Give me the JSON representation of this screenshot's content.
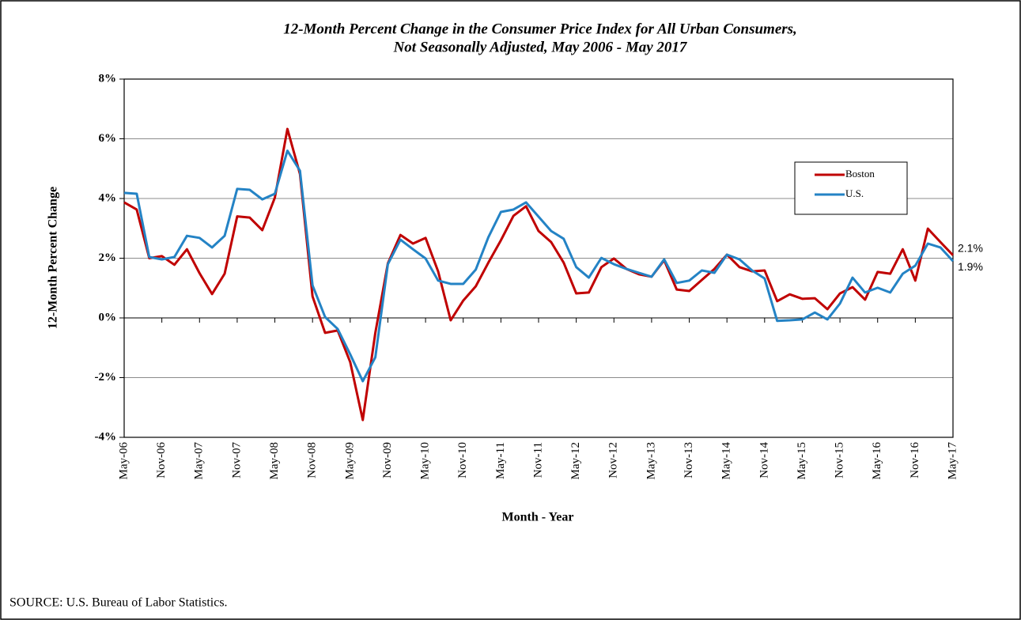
{
  "chart_data": {
    "type": "line",
    "title": [
      "12-Month Percent Change in the Consumer Price Index for All Urban Consumers,",
      "Not Seasonally Adjusted, May 2006 - May 2017"
    ],
    "ylabel": "12-Month Percent Change",
    "xlabel": "Month - Year",
    "source": "SOURCE:  U.S. Bureau of Labor Statistics.",
    "categories": [
      "May-06",
      null,
      null,
      "Nov-06",
      null,
      null,
      "May-07",
      null,
      null,
      "Nov-07",
      null,
      null,
      "May-08",
      null,
      null,
      "Nov-08",
      null,
      null,
      "May-09",
      null,
      null,
      "Nov-09",
      null,
      null,
      "May-10",
      null,
      null,
      "Nov-10",
      null,
      null,
      "May-11",
      null,
      null,
      "Nov-11",
      null,
      null,
      "May-12",
      null,
      null,
      "Nov-12",
      null,
      null,
      "May-13",
      null,
      null,
      "Nov-13",
      null,
      null,
      "May-14",
      null,
      null,
      "Nov-14",
      null,
      null,
      "May-15",
      null,
      null,
      "Nov-15",
      null,
      null,
      "May-16",
      null,
      null,
      "Nov-16",
      null,
      null,
      "May-17"
    ],
    "series": [
      {
        "name": "Boston",
        "color": "#c00000",
        "values": [
          3.87,
          3.63,
          2.0,
          2.07,
          1.78,
          2.3,
          1.5,
          0.8,
          1.48,
          3.4,
          3.36,
          2.94,
          4.03,
          6.33,
          4.82,
          0.72,
          -0.5,
          -0.42,
          -1.48,
          -3.42,
          -0.5,
          1.83,
          2.78,
          2.49,
          2.68,
          1.56,
          -0.08,
          0.58,
          1.06,
          1.85,
          2.6,
          3.42,
          3.74,
          2.91,
          2.54,
          1.85,
          0.82,
          0.85,
          1.7,
          1.99,
          1.64,
          1.46,
          1.38,
          1.93,
          0.95,
          0.9,
          1.27,
          1.64,
          2.12,
          1.7,
          1.56,
          1.59,
          0.56,
          0.79,
          0.64,
          0.66,
          0.29,
          0.82,
          1.03,
          0.61,
          1.54,
          1.48,
          2.3,
          1.25,
          2.99,
          2.54,
          2.1
        ],
        "value_labels": [
          null,
          null,
          null,
          null,
          null,
          null,
          null,
          null,
          null,
          null,
          null,
          null,
          null,
          null,
          null,
          null,
          null,
          null,
          null,
          null,
          null,
          null,
          null,
          null,
          null,
          null,
          null,
          null,
          null,
          null,
          null,
          null,
          null,
          null,
          null,
          null,
          null,
          null,
          null,
          null,
          null,
          null,
          null,
          null,
          null,
          null,
          null,
          null,
          null,
          null,
          null,
          null,
          null,
          null,
          null,
          null,
          null,
          null,
          null,
          null,
          null,
          null,
          null,
          null,
          null,
          null,
          "2.1%"
        ]
      },
      {
        "name": "U.S.",
        "color": "#2483c5",
        "values": [
          4.19,
          4.16,
          2.04,
          1.96,
          2.04,
          2.75,
          2.68,
          2.36,
          2.75,
          4.32,
          4.29,
          3.97,
          4.16,
          5.6,
          4.93,
          1.09,
          0.03,
          -0.37,
          -1.22,
          -2.12,
          -1.32,
          1.8,
          2.62,
          2.3,
          1.99,
          1.25,
          1.14,
          1.14,
          1.62,
          2.7,
          3.55,
          3.63,
          3.87,
          3.39,
          2.91,
          2.65,
          1.7,
          1.35,
          2.01,
          1.8,
          1.64,
          1.51,
          1.38,
          1.96,
          1.17,
          1.25,
          1.59,
          1.51,
          2.12,
          1.96,
          1.59,
          1.32,
          -0.1,
          -0.08,
          -0.05,
          0.18,
          -0.05,
          0.48,
          1.35,
          0.85,
          1.01,
          0.85,
          1.48,
          1.75,
          2.49,
          2.36,
          1.9
        ],
        "value_labels": [
          null,
          null,
          null,
          null,
          null,
          null,
          null,
          null,
          null,
          null,
          null,
          null,
          null,
          null,
          null,
          null,
          null,
          null,
          null,
          null,
          null,
          null,
          null,
          null,
          null,
          null,
          null,
          null,
          null,
          null,
          null,
          null,
          null,
          null,
          null,
          null,
          null,
          null,
          null,
          null,
          null,
          null,
          null,
          null,
          null,
          null,
          null,
          null,
          null,
          null,
          null,
          null,
          null,
          null,
          null,
          null,
          null,
          null,
          null,
          null,
          null,
          null,
          null,
          null,
          null,
          null,
          "1.9%"
        ]
      }
    ],
    "ylim": [
      -4,
      8
    ],
    "yticks": [
      {
        "value": -4,
        "label": "-4%"
      },
      {
        "value": -2,
        "label": "-2%"
      },
      {
        "value": 0,
        "label": "0%"
      },
      {
        "value": 2,
        "label": "2%"
      },
      {
        "value": 4,
        "label": "4%"
      },
      {
        "value": 6,
        "label": "6%"
      },
      {
        "value": 8,
        "label": "8%"
      }
    ],
    "grid": true,
    "legend": "upper right"
  }
}
